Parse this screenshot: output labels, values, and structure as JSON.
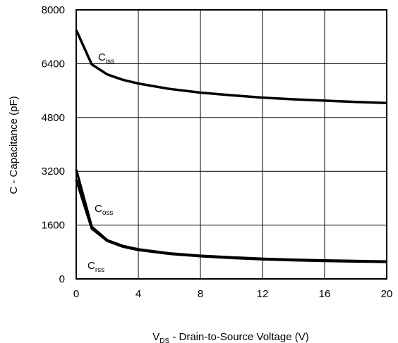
{
  "chart_data": {
    "type": "line",
    "xlabel_main": "V",
    "xlabel_sub": "DS",
    "xlabel_rest": " - Drain-to-Source Voltage (V)",
    "ylabel": "C - Capacitance (pF)",
    "xlim": [
      0,
      20
    ],
    "ylim": [
      0,
      8000
    ],
    "xticks": [
      0,
      4,
      8,
      12,
      16,
      20
    ],
    "yticks": [
      0,
      1600,
      3200,
      4800,
      6400,
      8000
    ],
    "x_tick_labels": [
      "0",
      "4",
      "8",
      "12",
      "16",
      "20"
    ],
    "y_tick_labels": [
      "0",
      "1600",
      "3200",
      "4800",
      "6400",
      "8000"
    ],
    "grid": true,
    "line_color": "#000000",
    "series": [
      {
        "name_main": "C",
        "name_sub": "iss",
        "x": [
          0,
          1,
          2,
          3,
          4,
          6,
          8,
          10,
          12,
          14,
          16,
          18,
          20
        ],
        "y": [
          7400,
          6380,
          6080,
          5920,
          5810,
          5650,
          5540,
          5460,
          5390,
          5340,
          5300,
          5260,
          5230
        ]
      },
      {
        "name_main": "C",
        "name_sub": "oss",
        "x": [
          0,
          1,
          2,
          3,
          4,
          6,
          8,
          10,
          12,
          14,
          16,
          18,
          20
        ],
        "y": [
          3250,
          1550,
          1150,
          980,
          880,
          760,
          690,
          640,
          600,
          570,
          550,
          535,
          520
        ]
      },
      {
        "name_main": "C",
        "name_sub": "rss",
        "x": [
          0,
          1,
          2,
          3,
          4,
          6,
          8,
          10,
          12,
          14,
          16,
          18,
          20
        ],
        "y": [
          2950,
          1500,
          1130,
          960,
          860,
          745,
          675,
          625,
          585,
          555,
          535,
          520,
          505
        ]
      }
    ]
  }
}
